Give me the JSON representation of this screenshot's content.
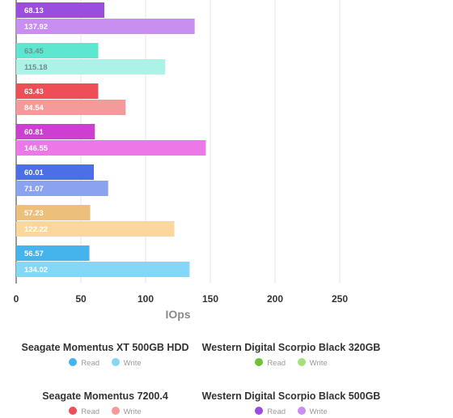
{
  "chart_data": {
    "type": "bar",
    "orientation": "horizontal",
    "xlabel": "IOps",
    "xlim": [
      0,
      250
    ],
    "xticks": [
      0,
      50,
      100,
      150,
      200,
      250
    ],
    "grid": true,
    "legend_position": "bottom",
    "groups": [
      {
        "read": 68.13,
        "write": 137.92,
        "read_color": "#9b4de0",
        "write_color": "#c88ef0"
      },
      {
        "read": 63.45,
        "write": 115.18,
        "read_color": "#5ce8d0",
        "write_color": "#adf2e6"
      },
      {
        "read": 63.43,
        "write": 84.54,
        "read_color": "#ee4f57",
        "write_color": "#f59a9a"
      },
      {
        "read": 60.81,
        "write": 146.55,
        "read_color": "#cc3fd0",
        "write_color": "#ec78e8"
      },
      {
        "read": 60.01,
        "write": 71.07,
        "read_color": "#4c6ee6",
        "write_color": "#8aa2f0"
      },
      {
        "read": 57.23,
        "write": 122.22,
        "read_color": "#ecc07a",
        "write_color": "#fbd79e"
      },
      {
        "read": 56.57,
        "write": 134.02,
        "read_color": "#45b4ec",
        "write_color": "#85d7f7"
      }
    ]
  },
  "legends": [
    {
      "title": "Seagate Momentus XT 500GB HDD",
      "read_label": "Read",
      "write_label": "Write",
      "read_color": "#45b4ec",
      "write_color": "#85d7f7"
    },
    {
      "title": "Western Digital Scorpio Black 320GB",
      "read_label": "Read",
      "write_label": "Write",
      "read_color": "#6cc43a",
      "write_color": "#a6e07c"
    },
    {
      "title": "Seagate Momentus 7200.4",
      "read_label": "Read",
      "write_label": "Write",
      "read_color": "#ee4f57",
      "write_color": "#f59a9a"
    },
    {
      "title": "Western Digital Scorpio Black 500GB",
      "read_label": "Read",
      "write_label": "Write",
      "read_color": "#9b4de0",
      "write_color": "#c88ef0"
    }
  ]
}
